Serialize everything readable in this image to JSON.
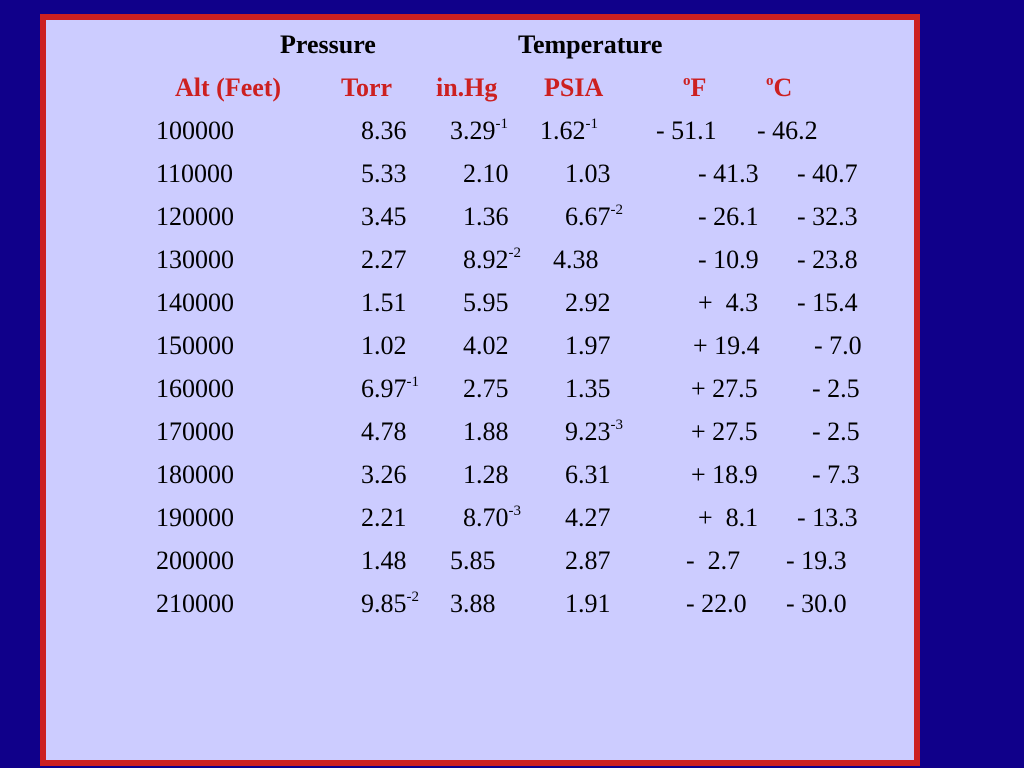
{
  "header_top": {
    "pressure": "Pressure",
    "temperature": "Temperature"
  },
  "header": {
    "alt": "Alt (Feet)",
    "torr": "Torr",
    "inhg": "in.Hg",
    "psia": "PSIA",
    "f_deg": "o",
    "f_unit": "F",
    "c_deg": "o",
    "c_unit": "C"
  },
  "rows": [
    {
      "alt": "100000",
      "torr": "8.36",
      "inhg": "3.29",
      "inhg_exp": "-1",
      "psia": "1.62",
      "psia_exp": "-1",
      "f": "- 51.1",
      "c": "- 46.2"
    },
    {
      "alt": "110000",
      "torr": "5.33",
      "inhg": "2.10",
      "psia": "1.03",
      "f": "- 41.3",
      "c": "- 40.7"
    },
    {
      "alt": "120000",
      "torr": "3.45",
      "inhg": "1.36",
      "psia": "6.67",
      "psia_exp": "-2",
      "f": "- 26.1",
      "c": "- 32.3"
    },
    {
      "alt": "130000",
      "torr": "2.27",
      "inhg": "8.92",
      "inhg_exp": "-2",
      "psia": "4.38",
      "f": "- 10.9",
      "c": "- 23.8"
    },
    {
      "alt": "140000",
      "torr": "1.51",
      "inhg": "5.95",
      "psia": "2.92",
      "f": "+  4.3",
      "c": "- 15.4"
    },
    {
      "alt": "150000",
      "torr": "1.02",
      "inhg": "4.02",
      "psia": "1.97",
      "f": "+ 19.4",
      "c": "- 7.0"
    },
    {
      "alt": "160000",
      "torr": "6.97",
      "torr_exp": "-1",
      "inhg": "2.75",
      "psia": "1.35",
      "f": "+ 27.5",
      "c": "- 2.5"
    },
    {
      "alt": "170000",
      "torr": "4.78",
      "inhg": "1.88",
      "psia": "9.23",
      "psia_exp": "-3",
      "f": "+ 27.5",
      "c": "- 2.5"
    },
    {
      "alt": "180000",
      "torr": "3.26",
      "inhg": "1.28",
      "psia": "6.31",
      "f": "+ 18.9",
      "c": "- 7.3"
    },
    {
      "alt": "190000",
      "torr": "2.21",
      "inhg": "8.70",
      "inhg_exp": "-3",
      "psia": "4.27",
      "f": "+  8.1",
      "c": "- 13.3"
    },
    {
      "alt": "200000",
      "torr": "1.48",
      "inhg": "5.85",
      "psia": "2.87",
      "f": "-  2.7",
      "c": "- 19.3"
    },
    {
      "alt": "210000",
      "torr": "9.85",
      "torr_exp": "-2",
      "inhg": "3.88",
      "psia": "1.91",
      "f": "- 22.0",
      "c": "- 30.0"
    }
  ]
}
